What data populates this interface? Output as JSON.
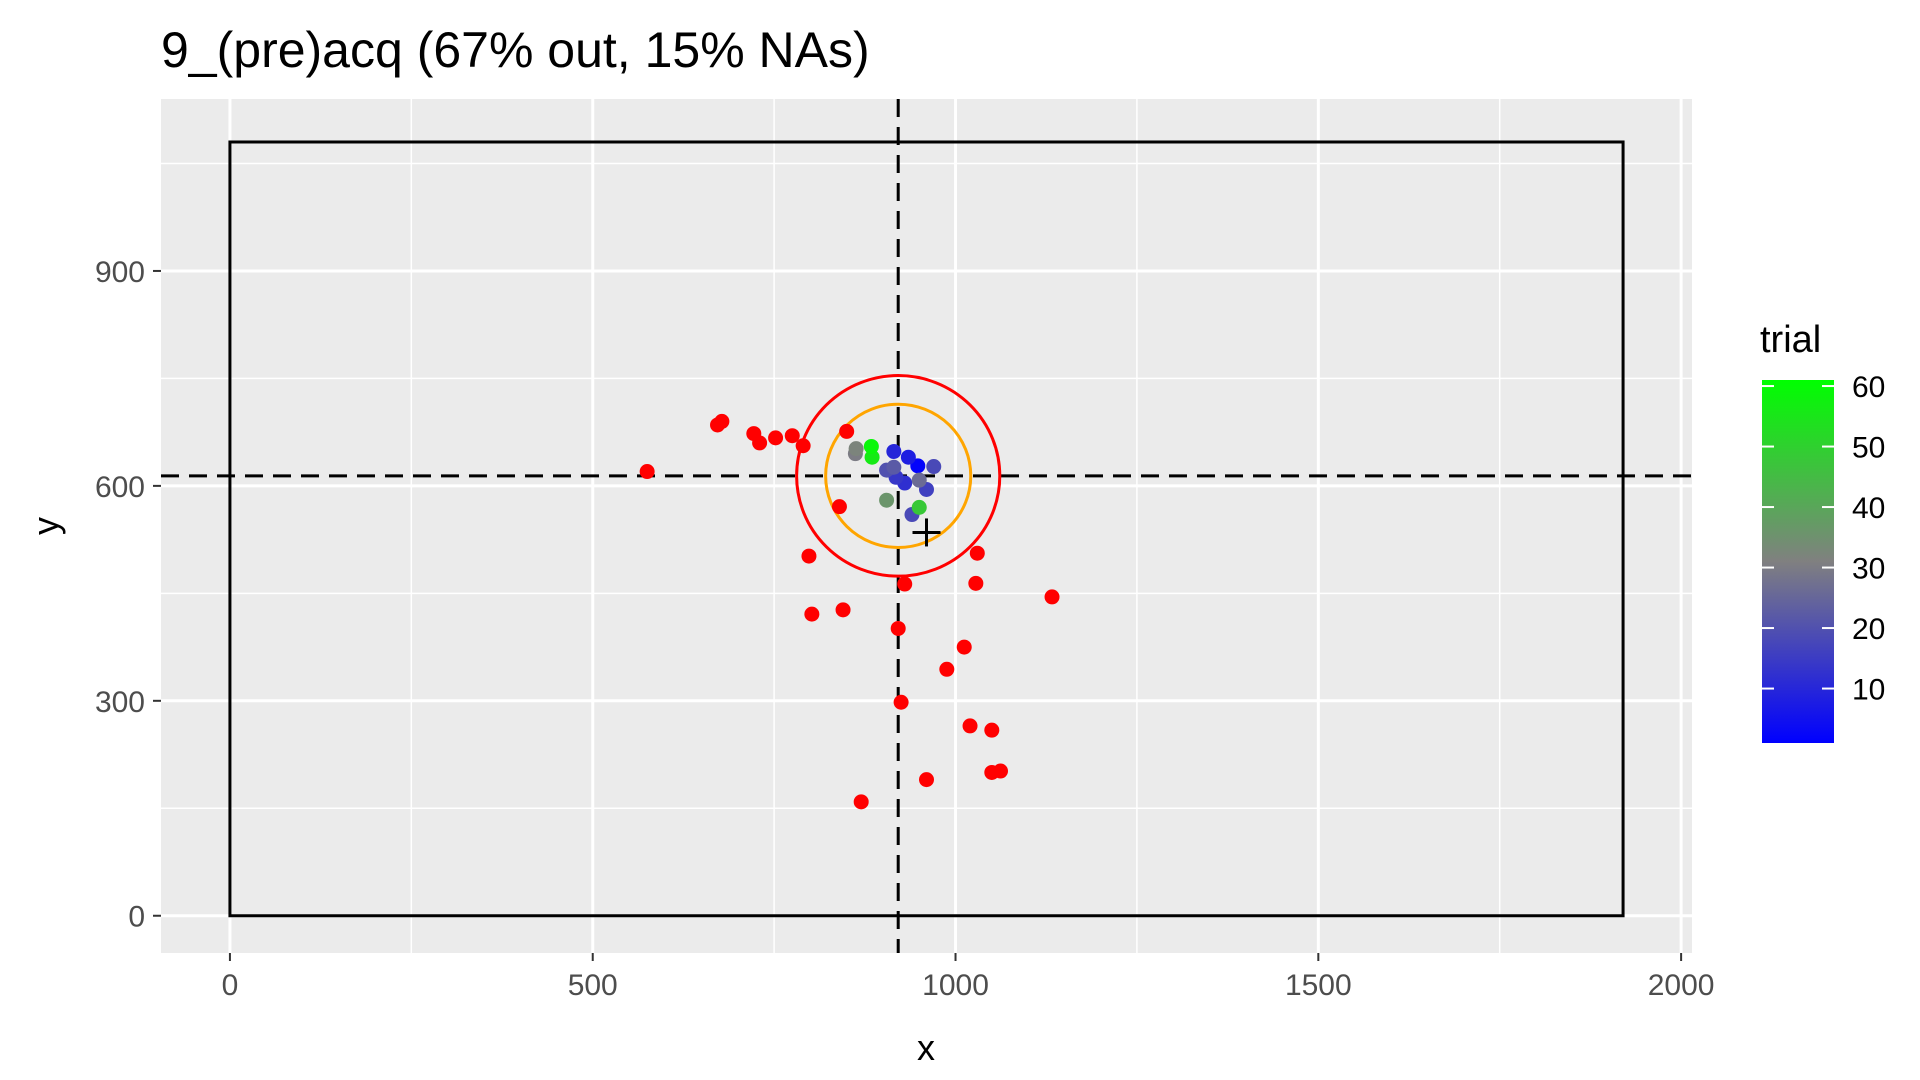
{
  "chart_data": {
    "type": "scatter",
    "title": "9_(pre)acq (67% out, 15% NAs)",
    "xlabel": "x",
    "ylabel": "y",
    "xlim": [
      -95,
      2015
    ],
    "ylim": [
      -52,
      1140
    ],
    "x_ticks": [
      0,
      500,
      1000,
      1500,
      2000
    ],
    "x_tick_labels": [
      "0",
      "500",
      "1000",
      "1500",
      "2000"
    ],
    "x_minor_ticks": [
      250,
      750,
      1250,
      1750
    ],
    "y_ticks": [
      0,
      300,
      600,
      900
    ],
    "y_tick_labels": [
      "0",
      "300",
      "600",
      "900"
    ],
    "y_minor_ticks": [
      150,
      450,
      750,
      1050
    ],
    "grid": true,
    "screen_rect": {
      "x0": 0,
      "y0": 0,
      "x1": 1920,
      "y1": 1080
    },
    "reference_lines": {
      "vertical_x": 921,
      "horizontal_y": 614
    },
    "circles": [
      {
        "cx": 921,
        "cy": 614,
        "r": 100,
        "color": "#FFA500"
      },
      {
        "cx": 921,
        "cy": 614,
        "r": 140,
        "color": "#FF0000"
      }
    ],
    "target_marker": {
      "x": 960,
      "y": 535
    },
    "outlier_color": "#FF0000",
    "outlier_points": [
      {
        "x": 575,
        "y": 620
      },
      {
        "x": 672,
        "y": 685
      },
      {
        "x": 678,
        "y": 690
      },
      {
        "x": 722,
        "y": 673
      },
      {
        "x": 730,
        "y": 660
      },
      {
        "x": 752,
        "y": 667
      },
      {
        "x": 775,
        "y": 670
      },
      {
        "x": 790,
        "y": 656
      },
      {
        "x": 850,
        "y": 676
      },
      {
        "x": 840,
        "y": 571
      },
      {
        "x": 798,
        "y": 502
      },
      {
        "x": 802,
        "y": 421
      },
      {
        "x": 845,
        "y": 427
      },
      {
        "x": 930,
        "y": 463
      },
      {
        "x": 921,
        "y": 401
      },
      {
        "x": 1030,
        "y": 506
      },
      {
        "x": 1028,
        "y": 464
      },
      {
        "x": 1133,
        "y": 445
      },
      {
        "x": 1012,
        "y": 375
      },
      {
        "x": 988,
        "y": 344
      },
      {
        "x": 925,
        "y": 298
      },
      {
        "x": 1020,
        "y": 265
      },
      {
        "x": 1050,
        "y": 259
      },
      {
        "x": 1050,
        "y": 200
      },
      {
        "x": 1062,
        "y": 202
      },
      {
        "x": 960,
        "y": 190
      },
      {
        "x": 870,
        "y": 159
      }
    ],
    "trial_points": [
      {
        "x": 948,
        "y": 628,
        "trial": 2
      },
      {
        "x": 935,
        "y": 640,
        "trial": 8
      },
      {
        "x": 915,
        "y": 648,
        "trial": 10
      },
      {
        "x": 930,
        "y": 604,
        "trial": 12
      },
      {
        "x": 918,
        "y": 612,
        "trial": 14
      },
      {
        "x": 960,
        "y": 595,
        "trial": 16
      },
      {
        "x": 970,
        "y": 627,
        "trial": 18
      },
      {
        "x": 940,
        "y": 560,
        "trial": 18
      },
      {
        "x": 905,
        "y": 622,
        "trial": 20
      },
      {
        "x": 915,
        "y": 626,
        "trial": 22
      },
      {
        "x": 950,
        "y": 608,
        "trial": 26
      },
      {
        "x": 862,
        "y": 645,
        "trial": 30
      },
      {
        "x": 863,
        "y": 652,
        "trial": 32
      },
      {
        "x": 905,
        "y": 580,
        "trial": 36
      },
      {
        "x": 950,
        "y": 570,
        "trial": 48
      },
      {
        "x": 885,
        "y": 640,
        "trial": 56
      },
      {
        "x": 884,
        "y": 655,
        "trial": 59
      }
    ],
    "legend": {
      "title": "trial",
      "placement": "right",
      "scale_min": 1,
      "scale_max": 61,
      "low_color": "#0000FF",
      "high_color": "#00FF00",
      "mid_color": "#808080",
      "ticks": [
        10,
        20,
        30,
        40,
        50,
        60
      ],
      "tick_labels": [
        "10",
        "20",
        "30",
        "40",
        "50",
        "60"
      ]
    }
  }
}
